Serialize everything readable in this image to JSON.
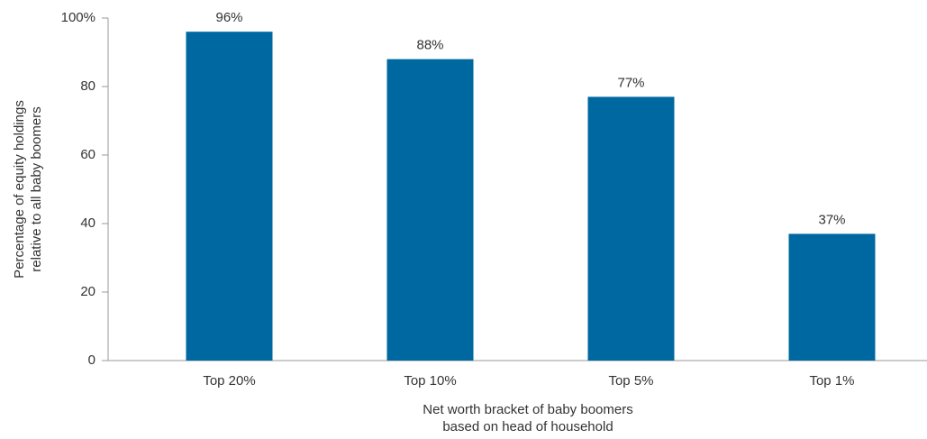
{
  "chart_data": {
    "type": "bar",
    "categories": [
      "Top 20%",
      "Top 10%",
      "Top 5%",
      "Top 1%"
    ],
    "values": [
      96,
      88,
      77,
      37
    ],
    "value_labels": [
      "96%",
      "88%",
      "77%",
      "37%"
    ],
    "color": "#0068a0",
    "ylim": [
      0,
      100
    ],
    "yticks": [
      0,
      20,
      40,
      60,
      80,
      {
        "value": 100,
        "label": "100%"
      }
    ],
    "y_label": [
      "Percentage of equity holdings",
      "relative to all baby boomers"
    ],
    "x_label": [
      "Net worth bracket of baby boomers",
      "based on head of household"
    ]
  }
}
